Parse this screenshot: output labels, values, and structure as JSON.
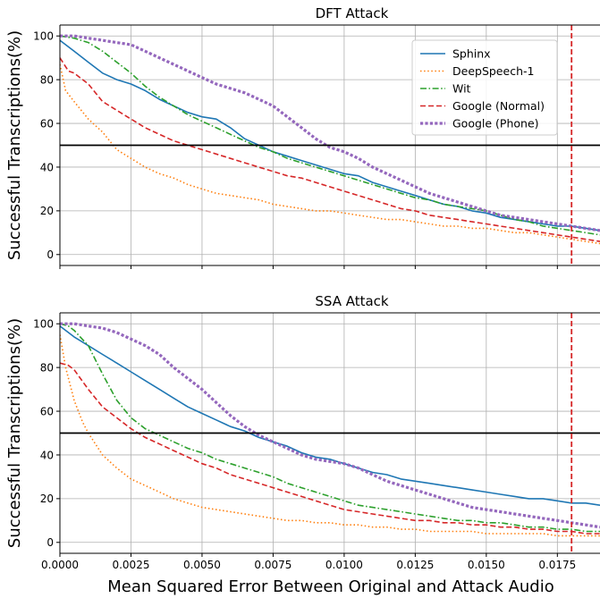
{
  "chart_data": [
    {
      "type": "line",
      "title": "DFT Attack",
      "xlabel": "",
      "ylabel": "Successful Transcriptions(%)",
      "xlim": [
        0,
        0.019
      ],
      "ylim": [
        -5,
        105
      ],
      "xticks": [
        0.0,
        0.0025,
        0.005,
        0.0075,
        0.01,
        0.0125,
        0.015,
        0.0175
      ],
      "yticks": [
        0,
        20,
        40,
        60,
        80,
        100
      ],
      "xtick_labels": [
        "",
        "",
        "",
        "",
        "",
        "",
        "",
        ""
      ],
      "ytick_labels": [
        "0",
        "20",
        "40",
        "60",
        "80",
        "100"
      ],
      "grid": true,
      "legend": "upper right",
      "hline": {
        "y": 50,
        "color": "#000000"
      },
      "vline": {
        "x": 0.018,
        "color": "#d62728"
      },
      "series": [
        {
          "name": "Sphinx",
          "color": "#1f77b4",
          "dash": "solid",
          "width": 1.6,
          "x": [
            0,
            0.0005,
            0.001,
            0.0015,
            0.002,
            0.0025,
            0.003,
            0.0035,
            0.004,
            0.0045,
            0.005,
            0.0055,
            0.006,
            0.0065,
            0.007,
            0.0075,
            0.008,
            0.0085,
            0.009,
            0.0095,
            0.01,
            0.0105,
            0.011,
            0.0115,
            0.012,
            0.0125,
            0.013,
            0.0135,
            0.014,
            0.0145,
            0.015,
            0.0155,
            0.016,
            0.0165,
            0.017,
            0.0175,
            0.018,
            0.0185,
            0.019
          ],
          "y": [
            98,
            93,
            88,
            83,
            80,
            78,
            75,
            71,
            68,
            65,
            63,
            62,
            58,
            53,
            50,
            47,
            45,
            43,
            41,
            39,
            37,
            36,
            33,
            31,
            29,
            27,
            25,
            23,
            22,
            20,
            19,
            17,
            16,
            15,
            14,
            13,
            13,
            12,
            11
          ]
        },
        {
          "name": "DeepSpeech-1",
          "color": "#ff7f0e",
          "dash": "dotted",
          "width": 1.6,
          "x": [
            0,
            0.0002,
            0.0005,
            0.001,
            0.0015,
            0.002,
            0.0025,
            0.003,
            0.0035,
            0.004,
            0.0045,
            0.005,
            0.0055,
            0.006,
            0.0065,
            0.007,
            0.0075,
            0.008,
            0.0085,
            0.009,
            0.0095,
            0.01,
            0.0105,
            0.011,
            0.0115,
            0.012,
            0.0125,
            0.013,
            0.0135,
            0.014,
            0.0145,
            0.015,
            0.0155,
            0.016,
            0.0165,
            0.017,
            0.0175,
            0.018,
            0.0185,
            0.019
          ],
          "y": [
            87,
            75,
            70,
            62,
            56,
            48,
            44,
            40,
            37,
            35,
            32,
            30,
            28,
            27,
            26,
            25,
            23,
            22,
            21,
            20,
            20,
            19,
            18,
            17,
            16,
            16,
            15,
            14,
            13,
            13,
            12,
            12,
            11,
            10,
            10,
            9,
            8,
            7,
            6,
            5
          ]
        },
        {
          "name": "Wit",
          "color": "#2ca02c",
          "dash": "dashdot",
          "width": 1.6,
          "x": [
            0,
            0.0005,
            0.001,
            0.0015,
            0.002,
            0.0025,
            0.003,
            0.0035,
            0.004,
            0.0045,
            0.005,
            0.0055,
            0.006,
            0.0065,
            0.007,
            0.0075,
            0.008,
            0.0085,
            0.009,
            0.0095,
            0.01,
            0.0105,
            0.011,
            0.0115,
            0.012,
            0.0125,
            0.013,
            0.0135,
            0.014,
            0.0145,
            0.015,
            0.0155,
            0.016,
            0.0165,
            0.017,
            0.0175,
            0.018,
            0.0185,
            0.019
          ],
          "y": [
            100,
            99,
            97,
            93,
            88,
            83,
            77,
            72,
            68,
            64,
            61,
            58,
            55,
            52,
            49,
            47,
            44,
            42,
            40,
            38,
            36,
            34,
            32,
            30,
            28,
            26,
            25,
            23,
            22,
            21,
            20,
            18,
            16,
            15,
            13,
            12,
            11,
            10,
            9
          ]
        },
        {
          "name": "Google (Normal)",
          "color": "#d62728",
          "dash": "dashed",
          "width": 1.6,
          "x": [
            0,
            0.0003,
            0.0005,
            0.001,
            0.0015,
            0.002,
            0.0025,
            0.003,
            0.0035,
            0.004,
            0.0045,
            0.005,
            0.0055,
            0.006,
            0.0065,
            0.007,
            0.0075,
            0.008,
            0.0085,
            0.009,
            0.0095,
            0.01,
            0.0105,
            0.011,
            0.0115,
            0.012,
            0.0125,
            0.013,
            0.0135,
            0.014,
            0.0145,
            0.015,
            0.0155,
            0.016,
            0.0165,
            0.017,
            0.0175,
            0.018,
            0.0185,
            0.019
          ],
          "y": [
            90,
            84,
            83,
            78,
            70,
            66,
            62,
            58,
            55,
            52,
            50,
            48,
            46,
            44,
            42,
            40,
            38,
            36,
            35,
            33,
            31,
            29,
            27,
            25,
            23,
            21,
            20,
            18,
            17,
            16,
            15,
            14,
            13,
            12,
            11,
            10,
            9,
            8,
            7,
            6
          ]
        },
        {
          "name": "Google (Phone)",
          "color": "#9467bd",
          "dash": "dotted-thick",
          "width": 3.2,
          "x": [
            0,
            0.0005,
            0.001,
            0.0015,
            0.002,
            0.0025,
            0.003,
            0.0035,
            0.004,
            0.0045,
            0.005,
            0.0055,
            0.006,
            0.0065,
            0.007,
            0.0075,
            0.008,
            0.0085,
            0.009,
            0.0095,
            0.01,
            0.0105,
            0.011,
            0.0115,
            0.012,
            0.0125,
            0.013,
            0.0135,
            0.014,
            0.0145,
            0.015,
            0.0155,
            0.016,
            0.0165,
            0.017,
            0.0175,
            0.018,
            0.0185,
            0.019
          ],
          "y": [
            100,
            100,
            99,
            98,
            97,
            96,
            93,
            90,
            87,
            84,
            81,
            78,
            76,
            74,
            71,
            68,
            63,
            58,
            53,
            49,
            47,
            44,
            40,
            37,
            34,
            31,
            28,
            26,
            24,
            22,
            20,
            18,
            17,
            16,
            15,
            14,
            13,
            12,
            11
          ]
        }
      ]
    },
    {
      "type": "line",
      "title": "SSA Attack",
      "xlabel": "Mean Squared Error Between Original and Attack Audio",
      "ylabel": "Successful Transcriptions(%)",
      "xlim": [
        0,
        0.019
      ],
      "ylim": [
        -5,
        105
      ],
      "xticks": [
        0.0,
        0.0025,
        0.005,
        0.0075,
        0.01,
        0.0125,
        0.015,
        0.0175
      ],
      "yticks": [
        0,
        20,
        40,
        60,
        80,
        100
      ],
      "xtick_labels": [
        "0.0000",
        "0.0025",
        "0.0050",
        "0.0075",
        "0.0100",
        "0.0125",
        "0.0150",
        "0.0175"
      ],
      "ytick_labels": [
        "0",
        "20",
        "40",
        "60",
        "80",
        "100"
      ],
      "grid": true,
      "legend": "",
      "hline": {
        "y": 50,
        "color": "#000000"
      },
      "vline": {
        "x": 0.018,
        "color": "#d62728"
      },
      "series": [
        {
          "name": "Sphinx",
          "color": "#1f77b4",
          "dash": "solid",
          "width": 1.6,
          "x": [
            0,
            0.0005,
            0.001,
            0.0015,
            0.002,
            0.0025,
            0.003,
            0.0035,
            0.004,
            0.0045,
            0.005,
            0.0055,
            0.006,
            0.0065,
            0.007,
            0.0075,
            0.008,
            0.0085,
            0.009,
            0.0095,
            0.01,
            0.0105,
            0.011,
            0.0115,
            0.012,
            0.0125,
            0.013,
            0.0135,
            0.014,
            0.0145,
            0.015,
            0.0155,
            0.016,
            0.0165,
            0.017,
            0.0175,
            0.018,
            0.0185,
            0.019
          ],
          "y": [
            99,
            94,
            90,
            86,
            82,
            78,
            74,
            70,
            66,
            62,
            59,
            56,
            53,
            51,
            48,
            46,
            44,
            41,
            39,
            38,
            36,
            34,
            32,
            31,
            29,
            28,
            27,
            26,
            25,
            24,
            23,
            22,
            21,
            20,
            20,
            19,
            18,
            18,
            17
          ]
        },
        {
          "name": "DeepSpeech-1",
          "color": "#ff7f0e",
          "dash": "dotted",
          "width": 1.6,
          "x": [
            0,
            0.0002,
            0.0005,
            0.0008,
            0.001,
            0.0015,
            0.002,
            0.0025,
            0.003,
            0.0035,
            0.004,
            0.0045,
            0.005,
            0.0055,
            0.006,
            0.0065,
            0.007,
            0.0075,
            0.008,
            0.0085,
            0.009,
            0.0095,
            0.01,
            0.0105,
            0.011,
            0.0115,
            0.012,
            0.0125,
            0.013,
            0.0135,
            0.014,
            0.0145,
            0.015,
            0.0155,
            0.016,
            0.0165,
            0.017,
            0.0175,
            0.018,
            0.0185,
            0.019
          ],
          "y": [
            95,
            80,
            65,
            55,
            50,
            40,
            34,
            29,
            26,
            23,
            20,
            18,
            16,
            15,
            14,
            13,
            12,
            11,
            10,
            10,
            9,
            9,
            8,
            8,
            7,
            7,
            6,
            6,
            5,
            5,
            5,
            5,
            4,
            4,
            4,
            4,
            4,
            3,
            3,
            3,
            3
          ]
        },
        {
          "name": "Wit",
          "color": "#2ca02c",
          "dash": "dashdot",
          "width": 1.6,
          "x": [
            0,
            0.0003,
            0.0005,
            0.001,
            0.0015,
            0.002,
            0.0025,
            0.003,
            0.0035,
            0.004,
            0.0045,
            0.005,
            0.0055,
            0.006,
            0.0065,
            0.007,
            0.0075,
            0.008,
            0.0085,
            0.009,
            0.0095,
            0.01,
            0.0105,
            0.011,
            0.0115,
            0.012,
            0.0125,
            0.013,
            0.0135,
            0.014,
            0.0145,
            0.015,
            0.0155,
            0.016,
            0.0165,
            0.017,
            0.0175,
            0.018,
            0.0185,
            0.019
          ],
          "y": [
            100,
            99,
            97,
            90,
            77,
            65,
            57,
            52,
            49,
            46,
            43,
            41,
            38,
            36,
            34,
            32,
            30,
            27,
            25,
            23,
            21,
            19,
            17,
            16,
            15,
            14,
            13,
            12,
            11,
            10,
            10,
            9,
            9,
            8,
            7,
            7,
            6,
            6,
            5,
            5
          ]
        },
        {
          "name": "Google (Normal)",
          "color": "#d62728",
          "dash": "dashed",
          "width": 1.6,
          "x": [
            0,
            0.0003,
            0.0005,
            0.001,
            0.0015,
            0.002,
            0.0025,
            0.003,
            0.0035,
            0.004,
            0.0045,
            0.005,
            0.0055,
            0.006,
            0.0065,
            0.007,
            0.0075,
            0.008,
            0.0085,
            0.009,
            0.0095,
            0.01,
            0.0105,
            0.011,
            0.0115,
            0.012,
            0.0125,
            0.013,
            0.0135,
            0.014,
            0.0145,
            0.015,
            0.0155,
            0.016,
            0.0165,
            0.017,
            0.0175,
            0.018,
            0.0185,
            0.019
          ],
          "y": [
            82,
            81,
            79,
            70,
            62,
            57,
            52,
            48,
            45,
            42,
            39,
            36,
            34,
            31,
            29,
            27,
            25,
            23,
            21,
            19,
            17,
            15,
            14,
            13,
            12,
            11,
            10,
            10,
            9,
            9,
            8,
            8,
            7,
            7,
            6,
            6,
            5,
            5,
            4,
            4
          ]
        },
        {
          "name": "Google (Phone)",
          "color": "#9467bd",
          "dash": "dotted-thick",
          "width": 3.2,
          "x": [
            0,
            0.0005,
            0.001,
            0.0015,
            0.002,
            0.0025,
            0.003,
            0.0035,
            0.004,
            0.0045,
            0.005,
            0.0055,
            0.006,
            0.0065,
            0.007,
            0.0075,
            0.008,
            0.0085,
            0.009,
            0.0095,
            0.01,
            0.0105,
            0.011,
            0.0115,
            0.012,
            0.0125,
            0.013,
            0.0135,
            0.014,
            0.0145,
            0.015,
            0.0155,
            0.016,
            0.0165,
            0.017,
            0.0175,
            0.018,
            0.0185,
            0.019
          ],
          "y": [
            100,
            100,
            99,
            98,
            96,
            93,
            90,
            86,
            80,
            75,
            70,
            64,
            58,
            53,
            49,
            46,
            43,
            40,
            38,
            37,
            36,
            34,
            31,
            28,
            26,
            24,
            22,
            20,
            18,
            16,
            15,
            14,
            13,
            12,
            11,
            10,
            9,
            8,
            7
          ]
        }
      ]
    }
  ]
}
